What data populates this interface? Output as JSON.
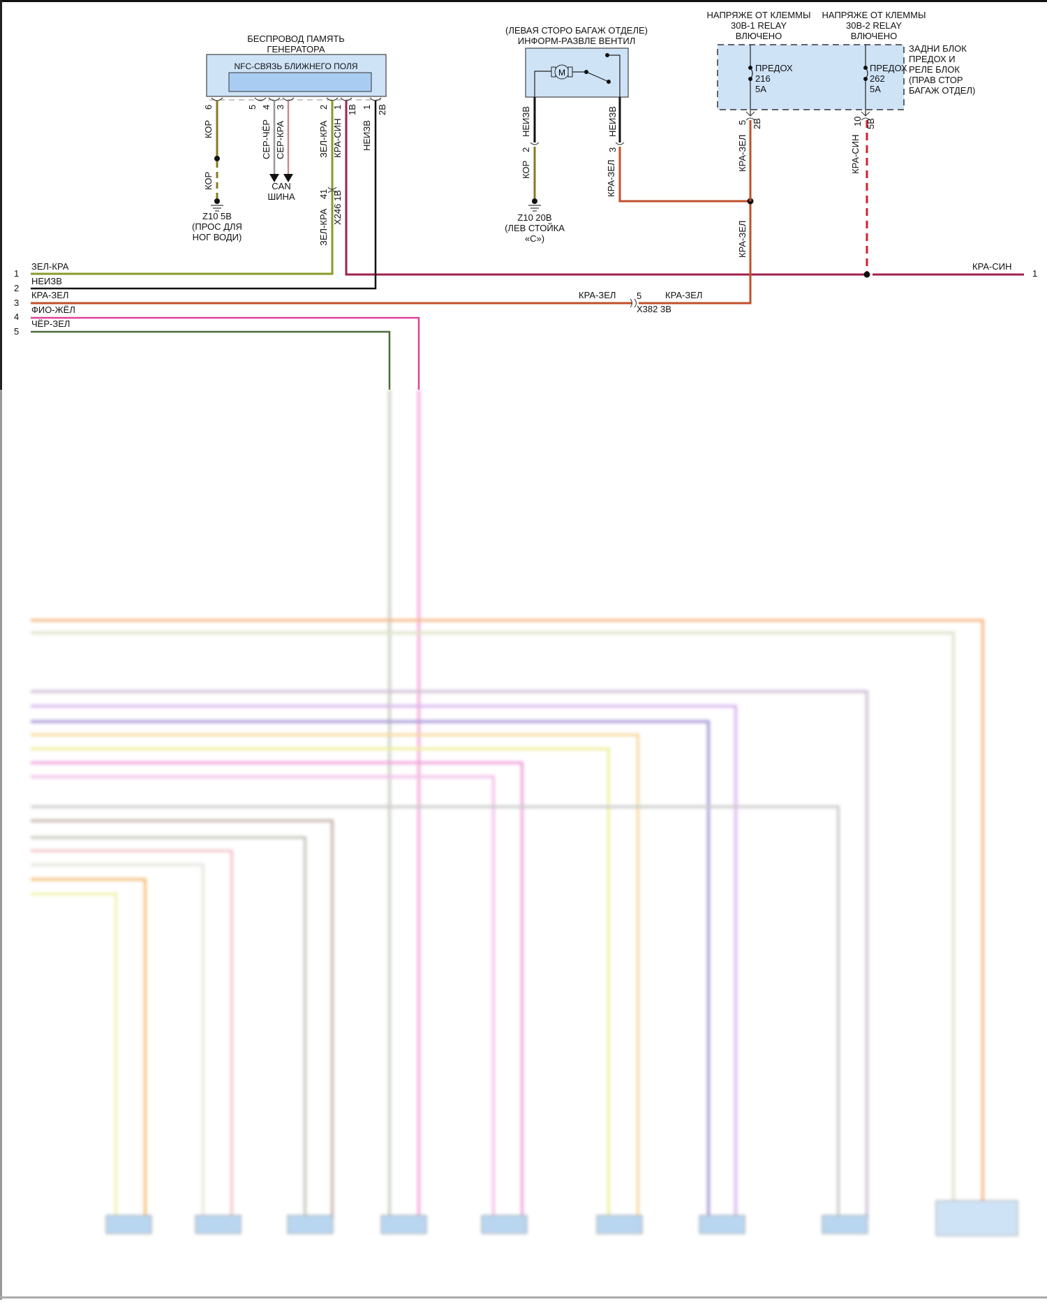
{
  "generator": {
    "title_line1": "БЕСПРОВОД ПАМЯТЬ",
    "title_line2": "ГЕНЕРАТОРА",
    "inner_label": "NFC-СВЯЗЬ БЛИЖНЕГО ПОЛЯ",
    "pins": [
      "6",
      "5",
      "4",
      "3",
      "2",
      "1",
      "1В",
      "1",
      "2В"
    ],
    "wire_labels": {
      "kor": "КОР",
      "ser_cher": "СЕР-ЧЁР",
      "ser_kra": "СЕР-КРА",
      "zel_kra": "ЗЕЛ-КРА",
      "kra_sin": "КРА-СИН",
      "neizv": "НЕИЗВ"
    },
    "ground_wire": "КОР",
    "ground": [
      "Z10 5В",
      "(ПРОС ДЛЯ",
      "НОГ ВОДИ)"
    ],
    "can": [
      "CAN",
      "ШИНА"
    ],
    "connector_pin": "41",
    "connector": "X246 1В",
    "connector_wire": "ЗЕЛ-КРА"
  },
  "valve": {
    "title_line1": "(ЛЕВАЯ СТОРО БАГАЖ ОТДЕЛЕ)",
    "title_line2": "ИНФОРМ-РАЗВЛЕ ВЕНТИЛ",
    "motor": "M",
    "left": {
      "wire_top": "НЕИЗВ",
      "pin": "2",
      "wire_bottom": "КОР"
    },
    "right": {
      "wire_top": "НЕИЗВ",
      "pin": "3",
      "wire_bottom": "КРА-ЗЕЛ"
    },
    "ground": [
      "Z10 20В",
      "(ЛЕВ СТОЙКА",
      "«С»)"
    ]
  },
  "relay_block": {
    "header1": [
      "НАПРЯЖЕ ОТ КЛЕММЫ",
      "30В-1 RELAY",
      "ВЛЮЧЕНО"
    ],
    "header2": [
      "НАПРЯЖЕ ОТ КЛЕММЫ",
      "30В-2 RELAY",
      "ВЛЮЧЕНО"
    ],
    "label": [
      "ЗАДНИ БЛОК",
      "ПРЕДОХ И",
      "РЕЛЕ БЛОК",
      "(ПРАВ СТОР",
      "БАГАЖ ОТДЕЛ)"
    ],
    "fuse1": [
      "ПРЕДОХ",
      "216",
      "5А"
    ],
    "fuse2": [
      "ПРЕДОХ",
      "262",
      "5А"
    ],
    "pin1": {
      "pin": "5",
      "conn": "2В",
      "wire": "КРА-ЗЕЛ",
      "wire2": "КРА-ЗЕЛ"
    },
    "pin2": {
      "pin": "10",
      "conn": "5В",
      "wire": "КРА-СИН"
    }
  },
  "harness": {
    "rows": [
      {
        "num": "1",
        "label": "ЗЕЛ-КРА",
        "color": "#8a9a2a"
      },
      {
        "num": "2",
        "label": "НЕИЗВ",
        "color": "#111111"
      },
      {
        "num": "3",
        "label": "КРА-ЗЕЛ",
        "color": "#c0502a"
      },
      {
        "num": "4",
        "label": "ФИО-ЖЁЛ",
        "color": "#e0409a"
      },
      {
        "num": "5",
        "label": "ЧЁР-ЗЕЛ",
        "color": "#4a6a3a"
      }
    ],
    "right_wire": {
      "label": "КРА-СИН",
      "num": "1",
      "color": "#a02050"
    },
    "x382": {
      "left_label": "КРА-ЗЕЛ",
      "pin": "5",
      "right_label": "КРА-ЗЕЛ",
      "connector": "X382 3В"
    }
  }
}
